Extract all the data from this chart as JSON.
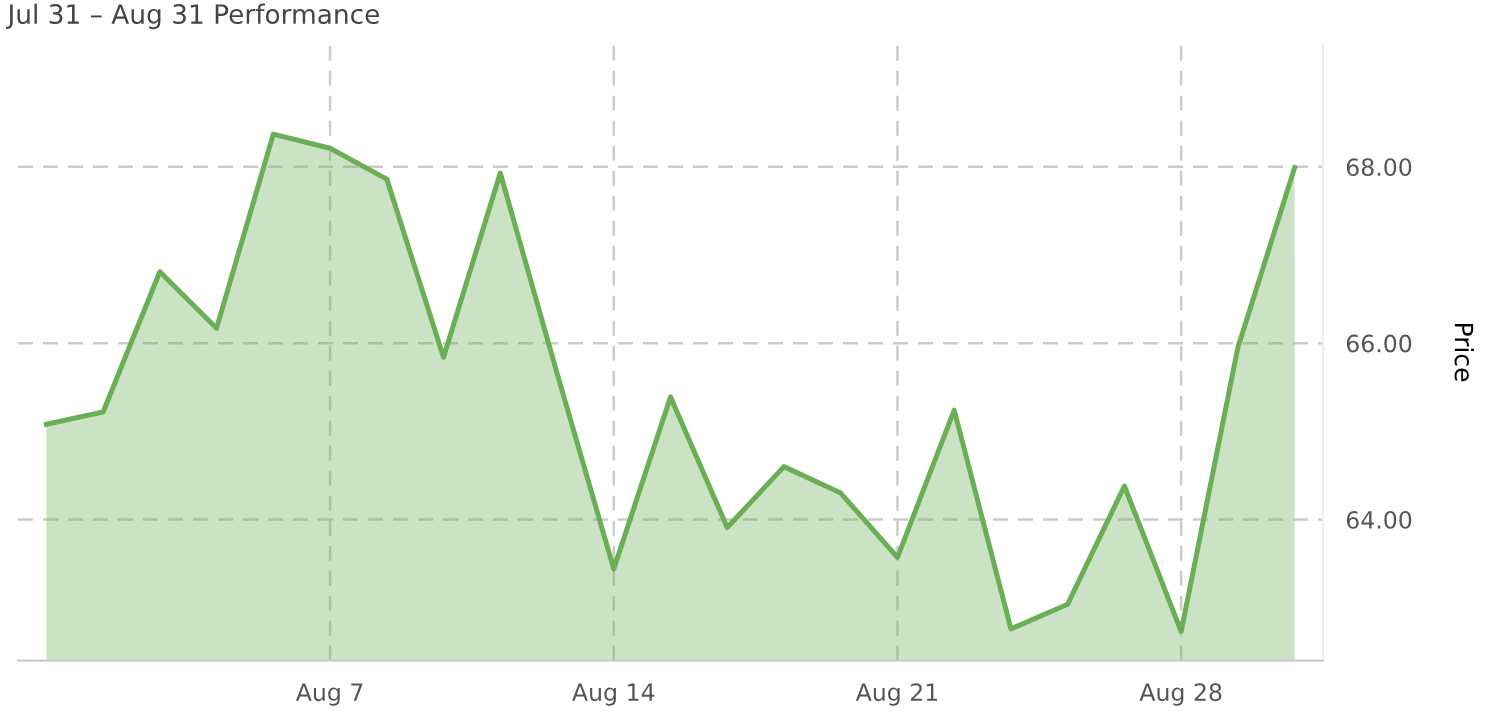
{
  "chart_data": {
    "type": "area",
    "title": "Jul 31 – Aug 31 Performance",
    "ylabel": "Price",
    "categories": [
      null,
      null,
      null,
      null,
      null,
      "Aug 7",
      null,
      null,
      null,
      null,
      "Aug 14",
      null,
      null,
      null,
      null,
      "Aug 21",
      null,
      null,
      null,
      null,
      "Aug 28",
      null,
      null
    ],
    "series": [
      {
        "color": "#6aaf55",
        "values": [
          65.08,
          65.22,
          66.81,
          66.17,
          68.37,
          68.21,
          67.86,
          65.84,
          67.93,
          65.66,
          63.44,
          65.39,
          63.91,
          64.6,
          64.3,
          63.57,
          65.24,
          62.76,
          63.04,
          64.38,
          62.73,
          65.95,
          67.99
        ]
      }
    ],
    "ylim": [
      62.4,
      69.4
    ],
    "yticks": [
      {
        "value": 64,
        "label": "64.00"
      },
      {
        "value": 66,
        "label": "66.00"
      },
      {
        "value": 68,
        "label": "68.00"
      }
    ],
    "grid": true,
    "line_style": "solid",
    "marker": "none"
  }
}
